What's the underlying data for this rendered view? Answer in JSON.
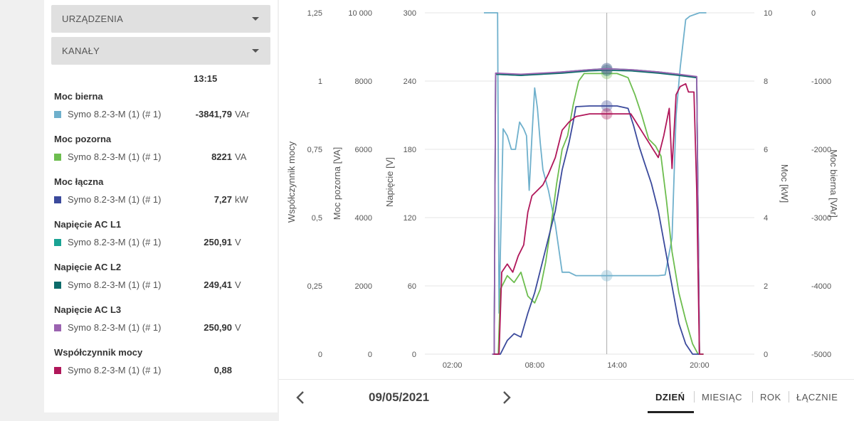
{
  "dropdowns": {
    "devices_label": "URZĄDZENIA",
    "channels_label": "KANAŁY"
  },
  "selected_time": "13:15",
  "channels": [
    {
      "title": "Moc bierna",
      "device": "Symo 8.2-3-M (1) (# 1)",
      "value": "-3841,79",
      "unit": "VAr",
      "color": "#6fb0cc"
    },
    {
      "title": "Moc pozorna",
      "device": "Symo 8.2-3-M (1) (# 1)",
      "value": "8221",
      "unit": "VA",
      "color": "#6dbd4f"
    },
    {
      "title": "Moc łączna",
      "device": "Symo 8.2-3-M (1) (# 1)",
      "value": "7,27",
      "unit": "kW",
      "color": "#3b4a9c"
    },
    {
      "title": "Napięcie AC L1",
      "device": "Symo 8.2-3-M (1) (# 1)",
      "value": "250,91",
      "unit": "V",
      "color": "#1aa394"
    },
    {
      "title": "Napięcie AC L2",
      "device": "Symo 8.2-3-M (1) (# 1)",
      "value": "249,41",
      "unit": "V",
      "color": "#0d6b6a"
    },
    {
      "title": "Napięcie AC L3",
      "device": "Symo 8.2-3-M (1) (# 1)",
      "value": "250,90",
      "unit": "V",
      "color": "#9b63b0"
    },
    {
      "title": "Współczynnik mocy",
      "device": "Symo 8.2-3-M (1) (# 1)",
      "value": "0,88",
      "unit": "",
      "color": "#b0175a"
    }
  ],
  "date": "09/05/2021",
  "tabs": [
    {
      "label": "DZIEŃ",
      "active": true
    },
    {
      "label": "MIESIĄC",
      "active": false
    },
    {
      "label": "ROK",
      "active": false
    },
    {
      "label": "ŁĄCZNIE",
      "active": false
    }
  ],
  "icons": {
    "prev": "chevron-left-icon",
    "next": "chevron-right-icon",
    "dropdown": "caret-down-icon"
  },
  "chart_data": {
    "type": "line",
    "x_ticks": [
      "02:00",
      "08:00",
      "14:00",
      "20:00"
    ],
    "x_range_hours": [
      0,
      24
    ],
    "cursor_time": "13:15",
    "axes": [
      {
        "label": "Współczynnik mocy",
        "ticks": [
          "0",
          "0,25",
          "0,5",
          "0,75",
          "1",
          "1,25"
        ],
        "range": [
          0,
          1.25
        ]
      },
      {
        "label": "Moc pozorna [VA]",
        "ticks": [
          "0",
          "2000",
          "4000",
          "6000",
          "8000",
          "10 000"
        ],
        "range": [
          0,
          10000
        ]
      },
      {
        "label": "Napięcie [V]",
        "ticks": [
          "0",
          "60",
          "120",
          "180",
          "240",
          "300"
        ],
        "range": [
          0,
          300
        ]
      },
      {
        "label": "Moc [kW]",
        "ticks": [
          "0",
          "2",
          "4",
          "6",
          "8",
          "10"
        ],
        "range": [
          0,
          10
        ]
      },
      {
        "label": "Moc bierna [VAr]",
        "ticks": [
          "-5000",
          "-4000",
          "-3000",
          "-2000",
          "-1000",
          "0"
        ],
        "range": [
          -5000,
          0
        ]
      }
    ],
    "series": [
      {
        "name": "Moc bierna",
        "axis": 4,
        "color": "#6fb0cc",
        "points": [
          [
            4.3,
            0
          ],
          [
            5.3,
            0
          ],
          [
            5.4,
            -4400
          ],
          [
            5.7,
            -1700
          ],
          [
            6.0,
            -1800
          ],
          [
            6.3,
            -2000
          ],
          [
            6.6,
            -2000
          ],
          [
            6.9,
            -1600
          ],
          [
            7.2,
            -1700
          ],
          [
            7.4,
            -1800
          ],
          [
            7.6,
            -2600
          ],
          [
            7.8,
            -1800
          ],
          [
            8.0,
            -1100
          ],
          [
            8.2,
            -1400
          ],
          [
            8.4,
            -1900
          ],
          [
            8.6,
            -2300
          ],
          [
            9.0,
            -2600
          ],
          [
            9.5,
            -3100
          ],
          [
            10.0,
            -3800
          ],
          [
            10.5,
            -3800
          ],
          [
            11,
            -3850
          ],
          [
            12,
            -3850
          ],
          [
            13.25,
            -3850
          ],
          [
            14,
            -3850
          ],
          [
            15,
            -3850
          ],
          [
            16,
            -3850
          ],
          [
            17,
            -3850
          ],
          [
            17.5,
            -3840
          ],
          [
            18.0,
            -3300
          ],
          [
            18.3,
            -1500
          ],
          [
            18.6,
            -800
          ],
          [
            19.0,
            -100
          ],
          [
            19.3,
            -50
          ],
          [
            20.0,
            0
          ],
          [
            20.5,
            0
          ]
        ]
      },
      {
        "name": "Moc pozorna",
        "axis": 1,
        "color": "#6dbd4f",
        "points": [
          [
            5.0,
            0
          ],
          [
            5.35,
            0
          ],
          [
            5.5,
            1900
          ],
          [
            6.0,
            2300
          ],
          [
            6.5,
            2100
          ],
          [
            7.0,
            2400
          ],
          [
            7.5,
            1700
          ],
          [
            8.0,
            1500
          ],
          [
            8.4,
            1900
          ],
          [
            8.8,
            2700
          ],
          [
            9.2,
            3800
          ],
          [
            9.6,
            5000
          ],
          [
            10.0,
            6000
          ],
          [
            10.4,
            6400
          ],
          [
            10.8,
            7300
          ],
          [
            11.2,
            8000
          ],
          [
            11.6,
            8220
          ],
          [
            12.5,
            8221
          ],
          [
            13.25,
            8221
          ],
          [
            14,
            8221
          ],
          [
            14.8,
            8100
          ],
          [
            15.3,
            7600
          ],
          [
            15.8,
            7000
          ],
          [
            16.3,
            6300
          ],
          [
            16.8,
            6100
          ],
          [
            17.2,
            5800
          ],
          [
            17.6,
            4500
          ],
          [
            18.0,
            3000
          ],
          [
            18.5,
            1800
          ],
          [
            19.0,
            1000
          ],
          [
            19.5,
            300
          ],
          [
            19.9,
            0
          ],
          [
            20.3,
            0
          ]
        ]
      },
      {
        "name": "Moc łączna",
        "axis": 3,
        "color": "#3b4a9c",
        "points": [
          [
            5.0,
            0
          ],
          [
            5.5,
            0
          ],
          [
            6.0,
            0.4
          ],
          [
            6.5,
            0.6
          ],
          [
            7.0,
            0.5
          ],
          [
            7.5,
            1.2
          ],
          [
            8.0,
            1.8
          ],
          [
            8.5,
            2.6
          ],
          [
            9.0,
            3.4
          ],
          [
            9.5,
            4.2
          ],
          [
            10.0,
            5.4
          ],
          [
            10.5,
            6.2
          ],
          [
            10.8,
            6.8
          ],
          [
            11.0,
            7.25
          ],
          [
            12.0,
            7.27
          ],
          [
            13.25,
            7.27
          ],
          [
            14.0,
            7.27
          ],
          [
            14.8,
            7.2
          ],
          [
            15.2,
            6.7
          ],
          [
            15.6,
            6.1
          ],
          [
            16.0,
            5.6
          ],
          [
            16.5,
            5.0
          ],
          [
            17.0,
            4.2
          ],
          [
            17.5,
            3.1
          ],
          [
            18.0,
            2.0
          ],
          [
            18.5,
            0.9
          ],
          [
            19.0,
            0.3
          ],
          [
            19.5,
            0
          ],
          [
            20.0,
            0
          ]
        ]
      },
      {
        "name": "Napięcie AC L1",
        "axis": 2,
        "color": "#1aa394",
        "points": [
          [
            4.9,
            0
          ],
          [
            5.05,
            0
          ],
          [
            5.15,
            246
          ],
          [
            7,
            245
          ],
          [
            10,
            248
          ],
          [
            12,
            250
          ],
          [
            13.25,
            250.91
          ],
          [
            15,
            250
          ],
          [
            17,
            248
          ],
          [
            18.5,
            246
          ],
          [
            19.8,
            243
          ],
          [
            20.0,
            0
          ]
        ]
      },
      {
        "name": "Napięcie AC L2",
        "axis": 2,
        "color": "#0d6b6a",
        "points": [
          [
            4.9,
            0
          ],
          [
            5.05,
            0
          ],
          [
            5.15,
            246
          ],
          [
            7,
            245
          ],
          [
            10,
            247
          ],
          [
            12,
            249
          ],
          [
            13.25,
            249.41
          ],
          [
            15,
            249
          ],
          [
            17,
            247
          ],
          [
            18.5,
            245
          ],
          [
            19.8,
            243
          ],
          [
            20.0,
            0
          ]
        ]
      },
      {
        "name": "Napięcie AC L3",
        "axis": 2,
        "color": "#9b63b0",
        "points": [
          [
            4.9,
            0
          ],
          [
            5.05,
            0
          ],
          [
            5.15,
            247
          ],
          [
            7,
            246
          ],
          [
            10,
            248
          ],
          [
            12,
            250
          ],
          [
            13.25,
            250.9
          ],
          [
            15,
            250
          ],
          [
            17,
            248
          ],
          [
            18.5,
            246
          ],
          [
            19.8,
            244
          ],
          [
            20.0,
            0
          ]
        ]
      },
      {
        "name": "Współczynnik mocy",
        "axis": 0,
        "color": "#b0175a",
        "points": [
          [
            5.0,
            0
          ],
          [
            5.4,
            0
          ],
          [
            5.6,
            0.3
          ],
          [
            6.0,
            0.33
          ],
          [
            6.4,
            0.3
          ],
          [
            6.8,
            0.36
          ],
          [
            7.2,
            0.4
          ],
          [
            7.5,
            0.52
          ],
          [
            7.8,
            0.58
          ],
          [
            8.2,
            0.6
          ],
          [
            8.6,
            0.62
          ],
          [
            9.0,
            0.66
          ],
          [
            9.5,
            0.72
          ],
          [
            10.0,
            0.82
          ],
          [
            10.5,
            0.85
          ],
          [
            11.0,
            0.87
          ],
          [
            12.0,
            0.88
          ],
          [
            13.25,
            0.88
          ],
          [
            14.0,
            0.88
          ],
          [
            15.0,
            0.88
          ],
          [
            15.5,
            0.84
          ],
          [
            16.0,
            0.8
          ],
          [
            16.5,
            0.76
          ],
          [
            17.0,
            0.72
          ],
          [
            17.4,
            0.8
          ],
          [
            17.8,
            0.9
          ],
          [
            18.0,
            0.68
          ],
          [
            18.3,
            0.95
          ],
          [
            18.6,
            0.98
          ],
          [
            19.0,
            0.99
          ],
          [
            19.2,
            0.96
          ],
          [
            19.6,
            0.96
          ],
          [
            19.8,
            0.6
          ],
          [
            20.0,
            0.0
          ],
          [
            20.3,
            0
          ]
        ]
      }
    ]
  }
}
